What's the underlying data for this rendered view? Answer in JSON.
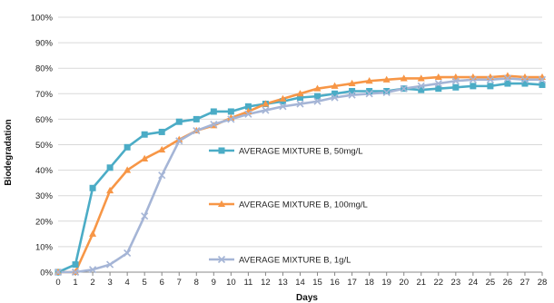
{
  "chart_data": {
    "type": "line",
    "xlabel": "Days",
    "ylabel": "Biodegradation",
    "x": [
      0,
      1,
      2,
      3,
      4,
      5,
      6,
      7,
      8,
      9,
      10,
      11,
      12,
      13,
      14,
      15,
      16,
      17,
      18,
      19,
      20,
      21,
      22,
      23,
      24,
      25,
      26,
      27,
      28
    ],
    "ylim": [
      0,
      100
    ],
    "xlim": [
      0,
      28
    ],
    "y_ticks": [
      "0%",
      "10%",
      "20%",
      "30%",
      "40%",
      "50%",
      "60%",
      "70%",
      "80%",
      "90%",
      "100%"
    ],
    "x_ticks": [
      "0",
      "1",
      "2",
      "3",
      "4",
      "5",
      "6",
      "7",
      "8",
      "9",
      "10",
      "11",
      "12",
      "13",
      "14",
      "15",
      "16",
      "17",
      "18",
      "19",
      "20",
      "21",
      "22",
      "23",
      "24",
      "25",
      "26",
      "27",
      "28"
    ],
    "grid": "horizontal",
    "legend_position": "center",
    "series": [
      {
        "name": "AVERAGE MIXTURE B, 50mg/L",
        "color": "#4BACC6",
        "marker": "square",
        "values": [
          0,
          3,
          33,
          41,
          49,
          54,
          55,
          59,
          60,
          63,
          63,
          65,
          66,
          67,
          68.5,
          69,
          70,
          71,
          71,
          71,
          72,
          71.5,
          72,
          72.5,
          73,
          73,
          74,
          74,
          73.5
        ]
      },
      {
        "name": "AVERAGE MIXTURE B, 100mg/L",
        "color": "#F79646",
        "marker": "triangle",
        "values": [
          0,
          0,
          15,
          32,
          40,
          44.5,
          48,
          52,
          55.5,
          57.5,
          60.5,
          63,
          66,
          68,
          70,
          72,
          73,
          74,
          75,
          75.5,
          76,
          76,
          76.5,
          76.5,
          76.5,
          76.5,
          77,
          76.5,
          76.5
        ]
      },
      {
        "name": "AVERAGE MIXTURE B, 1g/L",
        "color": "#A5B5D6",
        "marker": "x",
        "values": [
          0,
          0,
          1,
          3,
          7.5,
          22,
          38,
          51.5,
          55.5,
          58,
          60,
          62,
          63.5,
          65,
          66,
          67,
          68.5,
          69.5,
          70,
          70.5,
          72,
          73,
          74,
          75,
          75.5,
          75.5,
          76,
          75.5,
          75.5
        ]
      }
    ]
  }
}
